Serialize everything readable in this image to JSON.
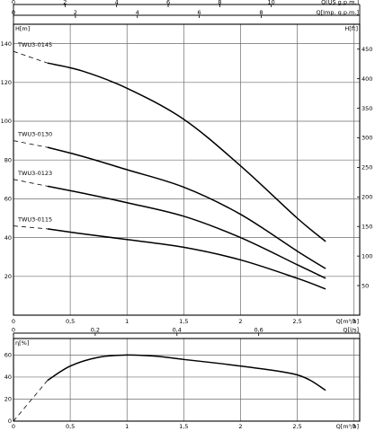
{
  "chart_data": [
    {
      "type": "line",
      "title": "",
      "xlabel": "Q[m³/h]",
      "ylabel": "H[m]",
      "y2label": "H[ft]",
      "top_axis_1_label": "Q[US g.p.m.]",
      "top_axis_2_label": "Q[Imp. g.p.m.]",
      "x_range": [
        0,
        3.05
      ],
      "y_range": [
        0,
        150
      ],
      "y2_range": [
        0,
        492
      ],
      "x_ticks": [
        "0",
        "0,5",
        "1",
        "1,5",
        "2",
        "2,5",
        "3"
      ],
      "y_ticks": [
        "0",
        "20",
        "40",
        "60",
        "80",
        "100",
        "120",
        "140"
      ],
      "y2_ticks": [
        "50",
        "100",
        "150",
        "200",
        "250",
        "300",
        "350",
        "400",
        "450"
      ],
      "top_axis_1_ticks": [
        "0",
        "2",
        "4",
        "6",
        "8",
        "10"
      ],
      "top_axis_2_ticks": [
        "0",
        "2",
        "4",
        "6",
        "8"
      ],
      "grid": true,
      "series": [
        {
          "name": "TWU3-0145",
          "extrapolated": {
            "x": [
              0,
              0.3
            ],
            "y": [
              136,
              130
            ]
          },
          "x": [
            0.3,
            0.6,
            1.0,
            1.5,
            2.0,
            2.5,
            2.75
          ],
          "y": [
            130,
            126,
            117,
            101,
            77,
            50,
            38
          ]
        },
        {
          "name": "TWU3-0130",
          "extrapolated": {
            "x": [
              0,
              0.3
            ],
            "y": [
              90,
              86.5
            ]
          },
          "x": [
            0.3,
            0.6,
            1.0,
            1.5,
            2.0,
            2.5,
            2.75
          ],
          "y": [
            86.5,
            82,
            75,
            66,
            52,
            33,
            24
          ]
        },
        {
          "name": "TWU3-0123",
          "extrapolated": {
            "x": [
              0,
              0.3
            ],
            "y": [
              70,
              66.5
            ]
          },
          "x": [
            0.3,
            0.6,
            1.0,
            1.5,
            2.0,
            2.5,
            2.75
          ],
          "y": [
            66.5,
            63,
            58,
            51,
            40,
            26,
            19
          ]
        },
        {
          "name": "TWU3-0115",
          "extrapolated": {
            "x": [
              0,
              0.3
            ],
            "y": [
              46,
              44.5
            ]
          },
          "x": [
            0.3,
            0.6,
            1.0,
            1.5,
            2.0,
            2.5,
            2.75
          ],
          "y": [
            44.5,
            42,
            39,
            35,
            28.5,
            19,
            13.5
          ]
        }
      ]
    },
    {
      "type": "line",
      "title": "",
      "xlabel": "Q[m³/h]",
      "ylabel": "η[%]",
      "top_axis_label": "Q[l/s]",
      "x_range": [
        0,
        3.05
      ],
      "y_range": [
        0,
        75
      ],
      "x_ticks": [
        "0",
        "0,5",
        "1",
        "1,5",
        "2",
        "2,5",
        "3"
      ],
      "y_ticks": [
        "0",
        "20",
        "40",
        "60"
      ],
      "top_axis_ticks": [
        "0",
        "0,2",
        "0,4",
        "0,6"
      ],
      "grid": true,
      "series": [
        {
          "name": "",
          "extrapolated": {
            "x": [
              0,
              0.3
            ],
            "y": [
              0,
              37
            ]
          },
          "x": [
            0.3,
            0.5,
            0.75,
            1.0,
            1.25,
            1.5,
            2.0,
            2.5,
            2.75
          ],
          "y": [
            37,
            50,
            58,
            60,
            59,
            56,
            50,
            42,
            28
          ]
        }
      ]
    }
  ]
}
